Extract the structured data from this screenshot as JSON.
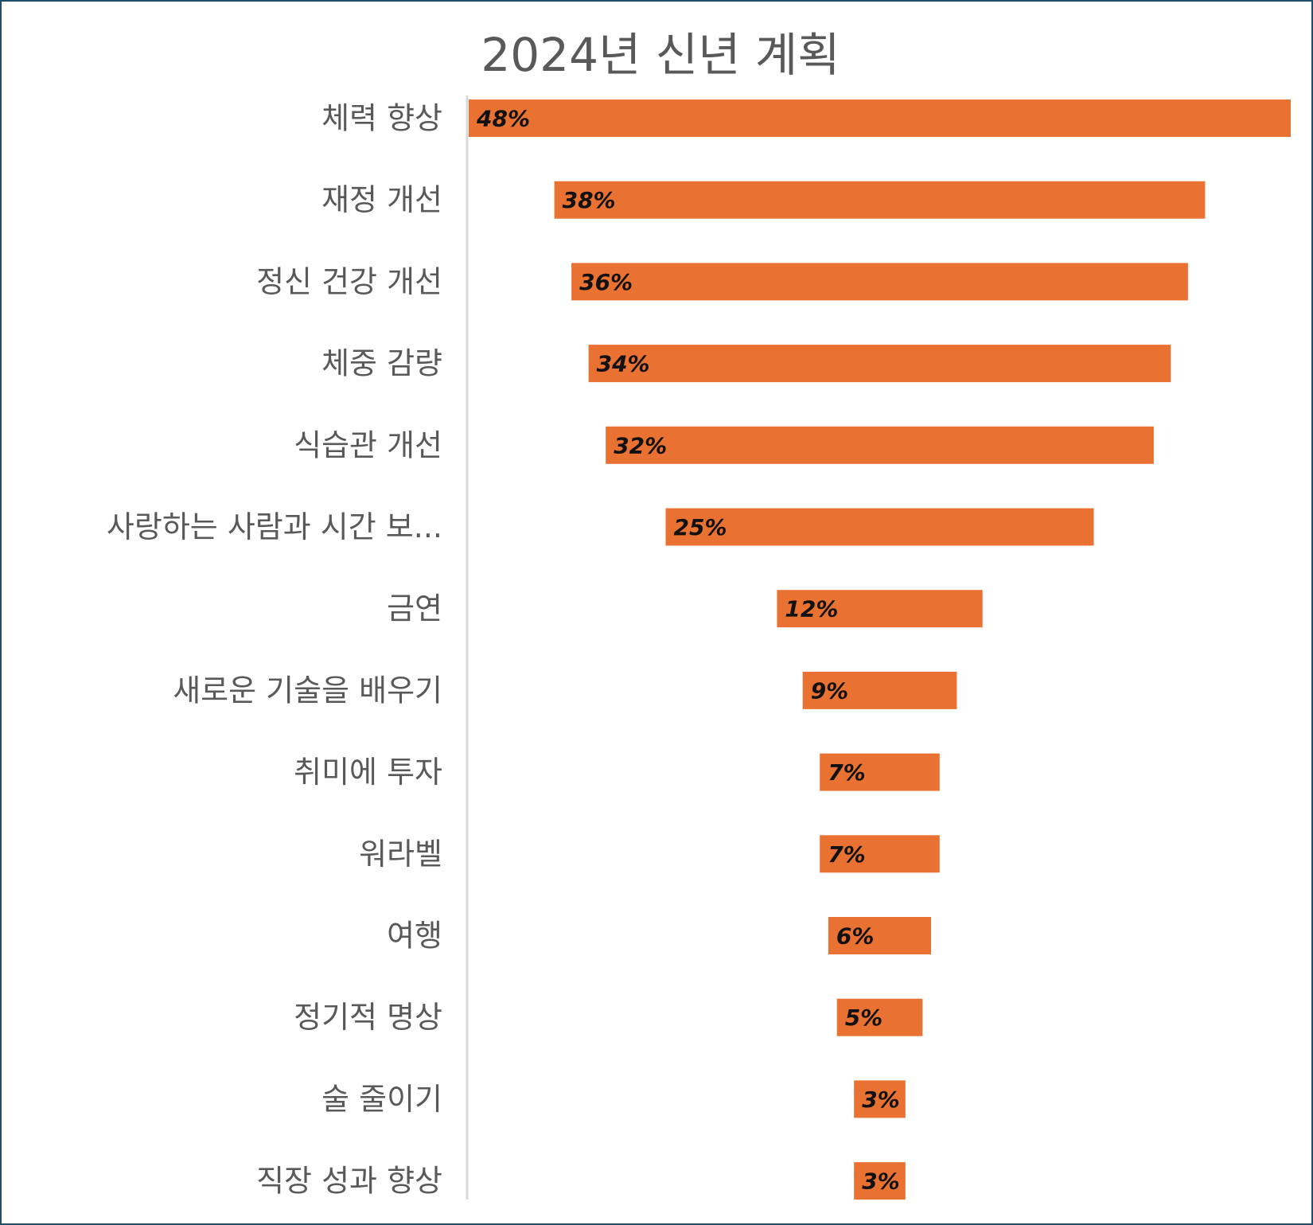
{
  "chart_data": {
    "type": "bar",
    "orientation": "horizontal",
    "style": "funnel",
    "title": "2024년 신년 계획",
    "categories": [
      "체력 향상",
      "재정 개선",
      "정신 건강 개선",
      "체중 감량",
      "식습관 개선",
      "사랑하는 사람과 시간 보...",
      "금연",
      "새로운 기술을 배우기",
      "취미에 투자",
      "워라벨",
      "여행",
      "정기적 명상",
      "술 줄이기",
      "직장 성과 향상"
    ],
    "values": [
      48,
      38,
      36,
      34,
      32,
      25,
      12,
      9,
      7,
      7,
      6,
      5,
      3,
      3
    ],
    "data_labels": [
      "48%",
      "38%",
      "36%",
      "34%",
      "32%",
      "25%",
      "12%",
      "9%",
      "7%",
      "7%",
      "6%",
      "5%",
      "3%",
      "3%"
    ],
    "unit": "%",
    "bar_color": "#e97132",
    "grid": false,
    "legend": "none"
  }
}
